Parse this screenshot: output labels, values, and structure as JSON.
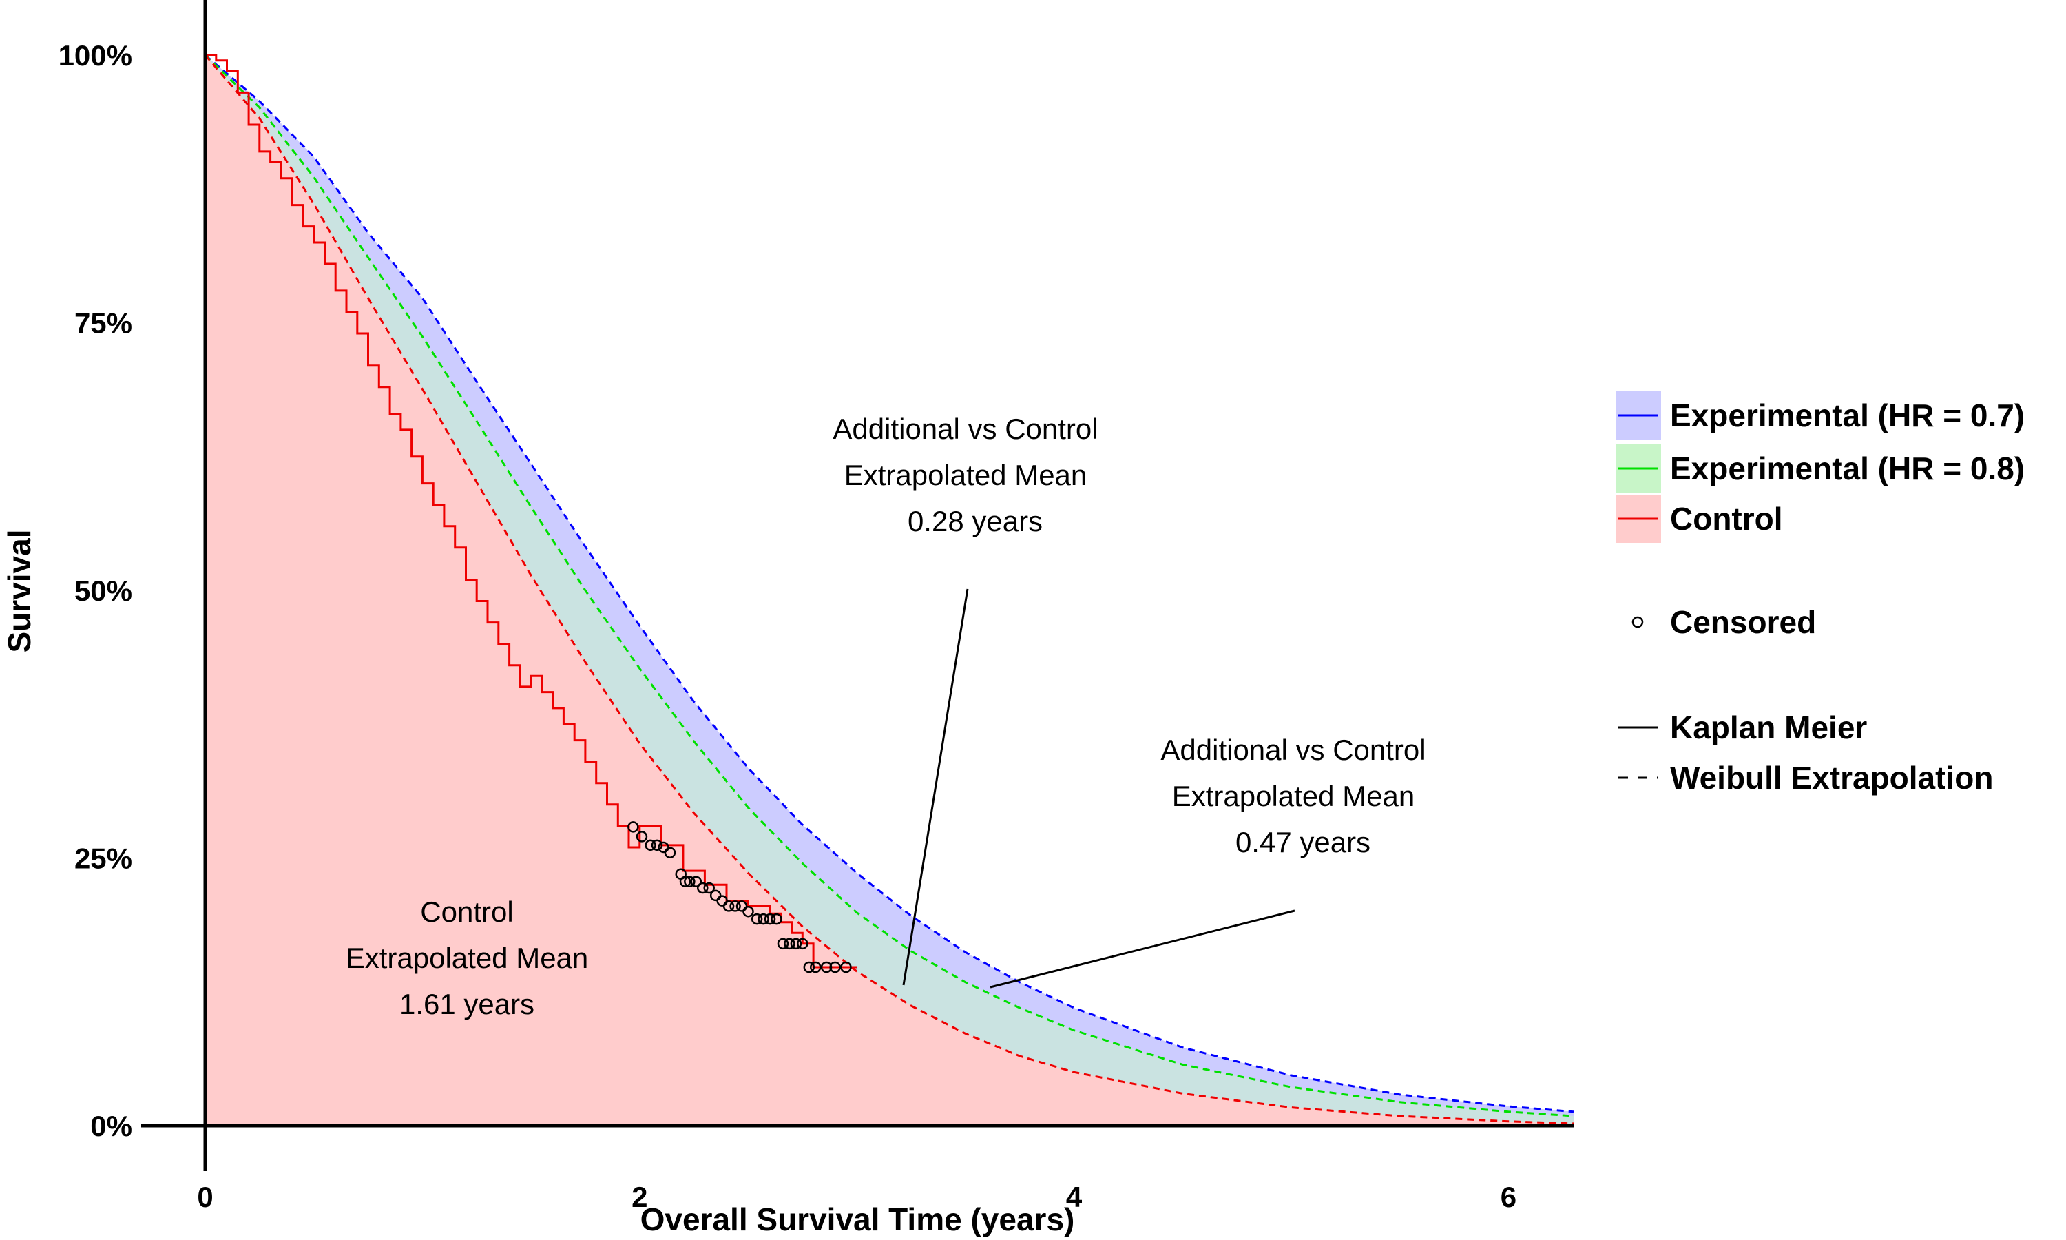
{
  "chart_data": {
    "type": "line",
    "xlabel": "Overall Survival Time (years)",
    "ylabel": "Survival",
    "xlim": [
      0,
      6.3
    ],
    "ylim": [
      0,
      1
    ],
    "x_ticks": [
      0,
      2,
      4,
      6
    ],
    "x_tick_labels": [
      "0",
      "2",
      "4",
      "6"
    ],
    "y_ticks": [
      0,
      0.25,
      0.5,
      0.75,
      1.0
    ],
    "y_tick_labels": [
      "0%",
      "25%",
      "50%",
      "75%",
      "100%"
    ],
    "grid": false,
    "legend_position": "right",
    "series": [
      {
        "name": "Experimental (HR = 0.7)",
        "style": "Weibull Extrapolation",
        "line_color": "#0000ff",
        "fill_color": "#ccccff",
        "x": [
          0,
          0.25,
          0.5,
          0.75,
          1.0,
          1.25,
          1.5,
          1.75,
          2.0,
          2.25,
          2.5,
          2.75,
          3.0,
          3.25,
          3.5,
          3.75,
          4.0,
          4.5,
          5.0,
          5.5,
          6.0,
          6.3
        ],
        "y": [
          1.0,
          0.957,
          0.905,
          0.834,
          0.773,
          0.695,
          0.618,
          0.541,
          0.467,
          0.396,
          0.334,
          0.281,
          0.236,
          0.196,
          0.162,
          0.134,
          0.11,
          0.073,
          0.047,
          0.029,
          0.018,
          0.013
        ]
      },
      {
        "name": "Experimental (HR = 0.8)",
        "style": "Weibull Extrapolation",
        "line_color": "#00e000",
        "fill_color": "#c8f5c8",
        "x": [
          0,
          0.25,
          0.5,
          0.75,
          1.0,
          1.25,
          1.5,
          1.75,
          2.0,
          2.25,
          2.5,
          2.75,
          3.0,
          3.25,
          3.5,
          3.75,
          4.0,
          4.5,
          5.0,
          5.5,
          6.0,
          6.3
        ],
        "y": [
          1.0,
          0.951,
          0.886,
          0.811,
          0.737,
          0.658,
          0.578,
          0.5,
          0.427,
          0.359,
          0.297,
          0.245,
          0.199,
          0.163,
          0.134,
          0.11,
          0.089,
          0.057,
          0.036,
          0.022,
          0.013,
          0.009
        ]
      },
      {
        "name": "Control",
        "style": "Weibull Extrapolation",
        "line_color": "#ee0000",
        "fill_color": "#ffcccc",
        "x": [
          0,
          0.25,
          0.5,
          0.75,
          1.0,
          1.25,
          1.5,
          1.75,
          2.0,
          2.25,
          2.5,
          2.75,
          3.0,
          3.25,
          3.5,
          3.75,
          4.0,
          4.5,
          5.0,
          5.5,
          6.0,
          6.3
        ],
        "y": [
          1.0,
          0.941,
          0.861,
          0.773,
          0.688,
          0.601,
          0.514,
          0.433,
          0.357,
          0.292,
          0.236,
          0.186,
          0.144,
          0.112,
          0.086,
          0.065,
          0.05,
          0.03,
          0.017,
          0.009,
          0.004,
          0.002
        ]
      },
      {
        "name": "Control",
        "style": "Kaplan Meier",
        "line_color": "#ee0000",
        "x": [
          0,
          0.05,
          0.1,
          0.15,
          0.2,
          0.25,
          0.3,
          0.35,
          0.4,
          0.45,
          0.5,
          0.55,
          0.6,
          0.65,
          0.7,
          0.75,
          0.8,
          0.85,
          0.9,
          0.95,
          1.0,
          1.05,
          1.1,
          1.15,
          1.2,
          1.25,
          1.3,
          1.35,
          1.4,
          1.45,
          1.5,
          1.55,
          1.6,
          1.65,
          1.7,
          1.75,
          1.8,
          1.85,
          1.9,
          1.95,
          2.0,
          2.1,
          2.2,
          2.3,
          2.4,
          2.5,
          2.6,
          2.65,
          2.7,
          2.75,
          2.8,
          2.9,
          3.0
        ],
        "y": [
          1.0,
          0.995,
          0.985,
          0.965,
          0.935,
          0.91,
          0.9,
          0.885,
          0.86,
          0.84,
          0.825,
          0.805,
          0.78,
          0.76,
          0.74,
          0.71,
          0.69,
          0.665,
          0.65,
          0.625,
          0.6,
          0.58,
          0.56,
          0.54,
          0.51,
          0.49,
          0.47,
          0.45,
          0.43,
          0.41,
          0.42,
          0.405,
          0.39,
          0.375,
          0.36,
          0.34,
          0.32,
          0.3,
          0.28,
          0.26,
          0.28,
          0.262,
          0.238,
          0.225,
          0.21,
          0.205,
          0.198,
          0.19,
          0.18,
          0.17,
          0.148,
          0.148,
          0.148
        ]
      }
    ],
    "censored": {
      "name": "Censored",
      "x": [
        1.97,
        2.01,
        2.05,
        2.08,
        2.11,
        2.14,
        2.19,
        2.21,
        2.23,
        2.26,
        2.29,
        2.32,
        2.35,
        2.38,
        2.41,
        2.44,
        2.47,
        2.5,
        2.54,
        2.57,
        2.6,
        2.63,
        2.66,
        2.69,
        2.72,
        2.75,
        2.78,
        2.81,
        2.86,
        2.9,
        2.95
      ],
      "y": [
        0.279,
        0.27,
        0.262,
        0.262,
        0.26,
        0.255,
        0.235,
        0.228,
        0.228,
        0.228,
        0.222,
        0.222,
        0.215,
        0.21,
        0.205,
        0.205,
        0.205,
        0.2,
        0.193,
        0.193,
        0.193,
        0.193,
        0.17,
        0.17,
        0.17,
        0.17,
        0.148,
        0.148,
        0.148,
        0.148,
        0.148
      ]
    },
    "annotations": [
      {
        "lines": [
          "Control",
          "Extrapolated Mean",
          "1.61 years"
        ]
      },
      {
        "lines": [
          "Additional vs Control",
          "Extrapolated Mean",
          "0.28 years"
        ]
      },
      {
        "lines": [
          "Additional vs Control",
          "Extrapolated Mean",
          "0.47 years"
        ]
      }
    ],
    "legend": {
      "series_entries": [
        {
          "label": "Experimental (HR = 0.7)",
          "line_color": "#0000ff",
          "fill_color": "#ccccff"
        },
        {
          "label": "Experimental (HR = 0.8)",
          "line_color": "#00e000",
          "fill_color": "#c8f5c8"
        },
        {
          "label": "Control",
          "line_color": "#ee0000",
          "fill_color": "#ffcccc"
        }
      ],
      "censored_label": "Censored",
      "linetype_entries": [
        {
          "label": "Kaplan Meier",
          "dash": false
        },
        {
          "label": "Weibull Extrapolation",
          "dash": true
        }
      ]
    }
  }
}
